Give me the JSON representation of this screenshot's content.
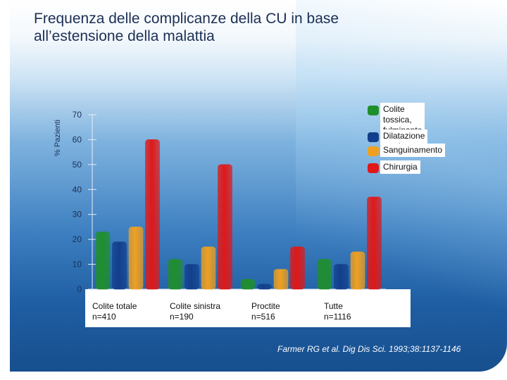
{
  "title": "Frequenza delle complicanze della CU in base\nall’estensione della malattia",
  "citation": "Farmer RG et al. Dig Dis Sci. 1993;38:1137-1146",
  "colors": {
    "series": [
      "#1f8f2b",
      "#123f8c",
      "#f0a020",
      "#e01818"
    ],
    "background_top": "#ffffff",
    "background_bottom": "#174f8e"
  },
  "chart_data": {
    "type": "bar",
    "title": "",
    "xlabel": "",
    "ylabel": "% Pazienti",
    "ylim": [
      0,
      70
    ],
    "yticks": [
      0,
      10,
      20,
      30,
      40,
      50,
      60,
      70
    ],
    "categories": [
      "Colite totale\nn=410",
      "Colite sinistra\nn=190",
      "Proctite\nn=516",
      "Tutte\nn=1116"
    ],
    "series": [
      {
        "name": "Colite tossica,\nfulminante o severa",
        "values": [
          23,
          12,
          4,
          12
        ]
      },
      {
        "name": "Dilatazione tossica",
        "values": [
          19,
          10,
          2,
          10
        ]
      },
      {
        "name": "Sanguinamento",
        "values": [
          25,
          17,
          8,
          15
        ]
      },
      {
        "name": "Chirurgia",
        "values": [
          60,
          50,
          17,
          37
        ]
      }
    ],
    "legend": "top-right",
    "grid": false
  }
}
